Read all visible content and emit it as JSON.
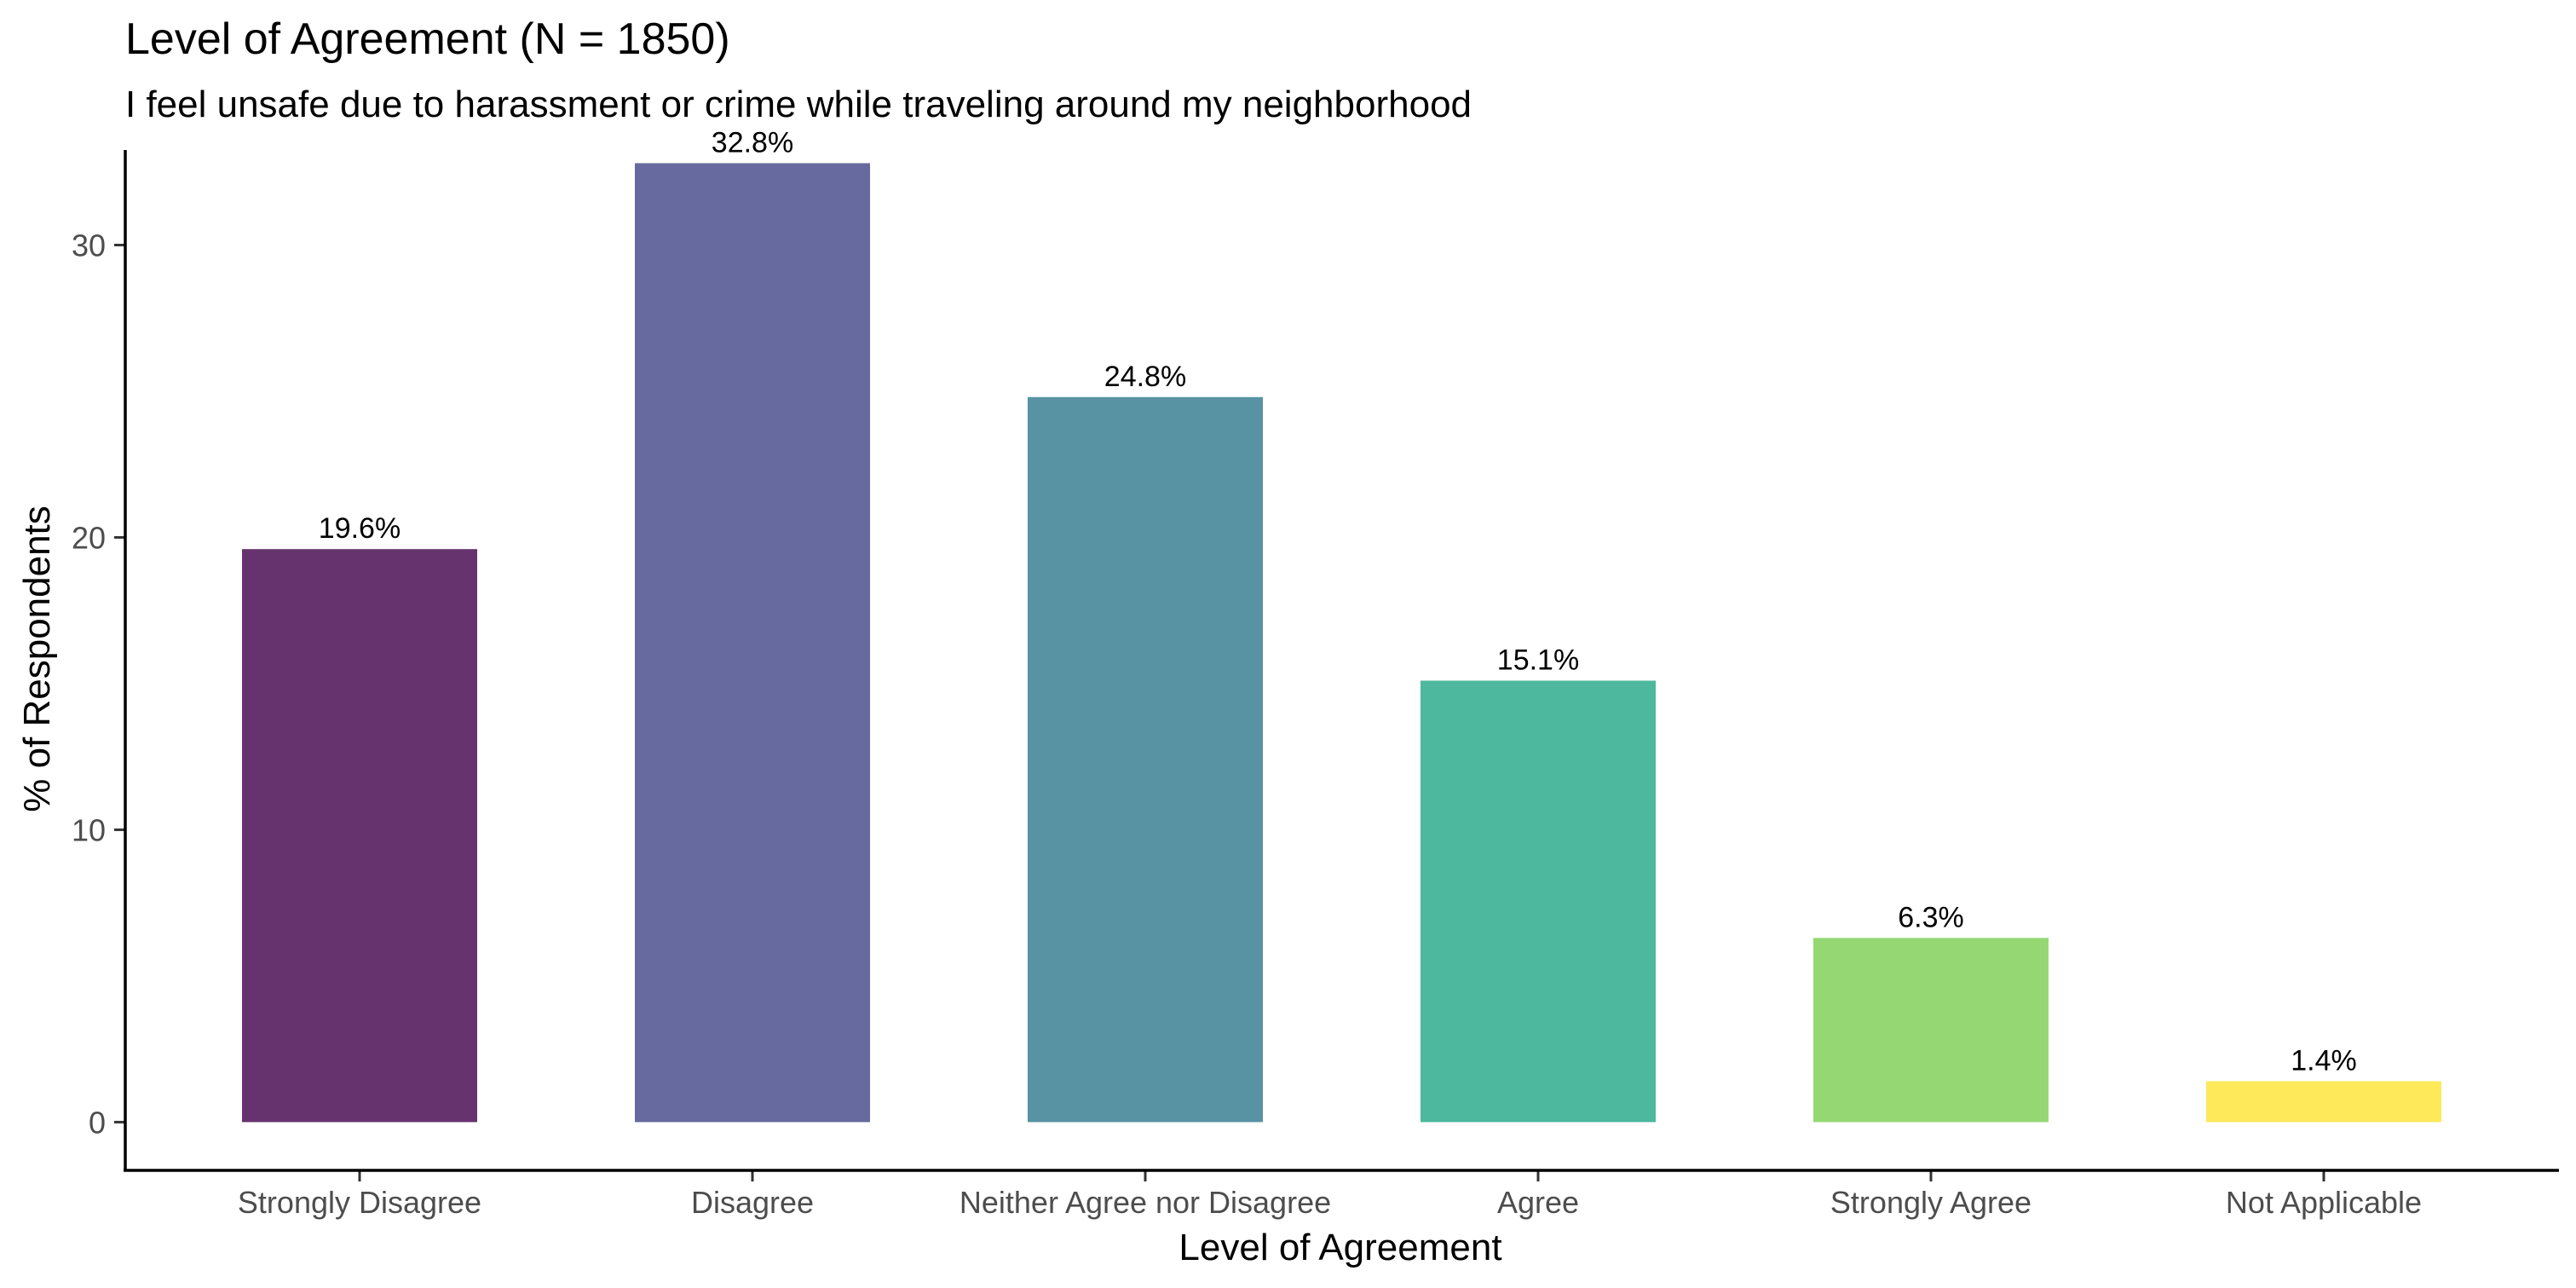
{
  "chart_data": {
    "type": "bar",
    "title": "Level of Agreement (N = 1850)",
    "subtitle": "I feel unsafe due to harassment or crime while traveling around my neighborhood",
    "xlabel": "Level of Agreement",
    "ylabel": "% of Respondents",
    "categories": [
      "Strongly Disagree",
      "Disagree",
      "Neither Agree nor Disagree",
      "Agree",
      "Strongly Agree",
      "Not Applicable"
    ],
    "values": [
      19.6,
      32.8,
      24.8,
      15.1,
      6.3,
      1.4
    ],
    "data_labels": [
      "19.6%",
      "32.8%",
      "24.8%",
      "15.1%",
      "6.3%",
      "1.4%"
    ],
    "colors": [
      "#67336f",
      "#666a9e",
      "#5893a4",
      "#4db89d",
      "#95d873",
      "#fde95a"
    ],
    "yticks": [
      0,
      10,
      20,
      30
    ],
    "ylim": [
      -1.65,
      33.25
    ],
    "grid": false,
    "legend": "none"
  }
}
